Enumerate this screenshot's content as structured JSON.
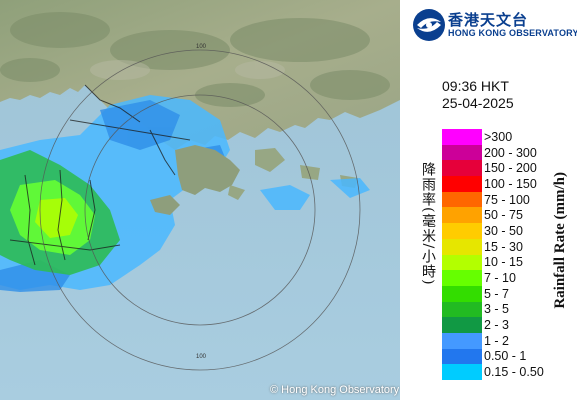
{
  "credit": "© Hong Kong Observatory",
  "logo": {
    "name_cn": "香港天文台",
    "name_en": "HONG KONG OBSERVATORY"
  },
  "time": "09:36 HKT",
  "date": "25-04-2025",
  "range_ring_label": "100",
  "legend": {
    "title_cn": "降雨率(毫米/小時)",
    "title_en": "Rainfall Rate (mm/h)",
    "items": [
      {
        "label": ">300",
        "color": "#ff00ff"
      },
      {
        "label": "200 - 300",
        "color": "#cc0099"
      },
      {
        "label": "150 - 200",
        "color": "#e6003a"
      },
      {
        "label": "100 - 150",
        "color": "#ff0000"
      },
      {
        "label": "75 - 100",
        "color": "#ff6600"
      },
      {
        "label": "50 - 75",
        "color": "#ffa200"
      },
      {
        "label": "30 - 50",
        "color": "#ffcc00"
      },
      {
        "label": "15 - 30",
        "color": "#e6e600"
      },
      {
        "label": "10 - 15",
        "color": "#b3ff00"
      },
      {
        "label": "7 - 10",
        "color": "#66ff00"
      },
      {
        "label": "5 - 7",
        "color": "#33dd00"
      },
      {
        "label": "3 - 5",
        "color": "#22bb22"
      },
      {
        "label": "2 - 3",
        "color": "#119944"
      },
      {
        "label": "1 - 2",
        "color": "#4499ff"
      },
      {
        "label": "0.50 - 1",
        "color": "#2277ee"
      },
      {
        "label": "0.15 - 0.50",
        "color": "#00ccff"
      }
    ]
  }
}
